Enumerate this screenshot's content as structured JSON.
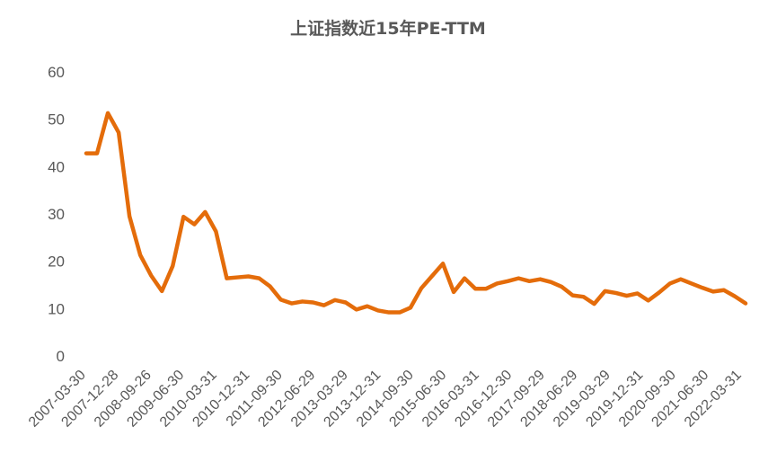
{
  "chart_data": {
    "type": "line",
    "title": "上证指数近15年PE-TTM",
    "xlabel": "",
    "ylabel": "",
    "ylim": [
      0,
      60
    ],
    "yticks": [
      "0",
      "10",
      "20",
      "30",
      "40",
      "50",
      "60"
    ],
    "grid": false,
    "legend": "none",
    "line_color": "#E46C0A",
    "x_tick_labels": [
      "2007-03-30",
      "2007-12-28",
      "2008-09-26",
      "2009-06-30",
      "2010-03-31",
      "2010-12-31",
      "2011-09-30",
      "2012-06-29",
      "2013-03-29",
      "2013-12-31",
      "2014-09-30",
      "2015-06-30",
      "2016-03-31",
      "2016-12-30",
      "2017-09-29",
      "2018-06-29",
      "2019-03-29",
      "2019-12-31",
      "2020-09-30",
      "2021-06-30",
      "2022-03-31"
    ],
    "series": [
      {
        "values": [
          42.8,
          42.8,
          51.3,
          47.2,
          29.5,
          21.3,
          17.0,
          13.7,
          19.0,
          29.4,
          27.8,
          30.4,
          26.3,
          16.4,
          16.6,
          16.8,
          16.4,
          14.7,
          11.9,
          11.1,
          11.5,
          11.3,
          10.7,
          11.8,
          11.3,
          9.8,
          10.5,
          9.6,
          9.2,
          9.2,
          10.2,
          14.3,
          16.9,
          19.5,
          13.5,
          16.4,
          14.2,
          14.2,
          15.3,
          15.8,
          16.4,
          15.8,
          16.2,
          15.6,
          14.6,
          12.8,
          12.5,
          11.0,
          13.7,
          13.3,
          12.7,
          13.2,
          11.7,
          13.4,
          15.3,
          16.2,
          15.3,
          14.4,
          13.6,
          13.9,
          12.6,
          11.1
        ]
      }
    ]
  }
}
